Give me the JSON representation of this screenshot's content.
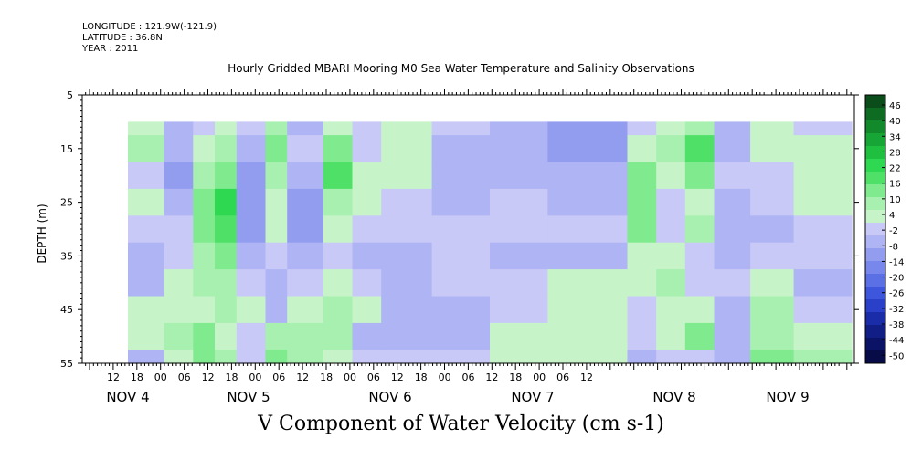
{
  "header": {
    "longitude": "LONGITUDE : 121.9W(-121.9)",
    "latitude": "LATITUDE : 36.8N",
    "year": "YEAR : 2011"
  },
  "chart_data": {
    "type": "heatmap",
    "title": "Hourly Gridded MBARI Mooring M0 Sea Water Temperature and Salinity Observations",
    "xlabel": "V Component of Water Velocity (cm s-1)",
    "ylabel": "DEPTH (m)",
    "ylim": [
      55,
      5
    ],
    "y_ticks": [
      "5",
      "15",
      "25",
      "35",
      "45",
      "55"
    ],
    "x_hour_ticks": [
      "12",
      "18",
      "00",
      "06",
      "12",
      "18",
      "00",
      "06",
      "12",
      "18",
      "00",
      "06",
      "12",
      "18",
      "00",
      "06",
      "12",
      "18",
      "00",
      "06",
      "12"
    ],
    "x_day_labels": [
      "NOV  4",
      "NOV  5",
      "NOV  6",
      "NOV  7",
      "NOV  8",
      "NOV  9"
    ],
    "colorbar_labels": [
      "46",
      "40",
      "34",
      "28",
      "22",
      "16",
      "10",
      "4",
      "-2",
      "-8",
      "-14",
      "-20",
      "-26",
      "-32",
      "-38",
      "-44",
      "-50"
    ],
    "colorbar_colors": [
      "#0a4d1a",
      "#0e6b22",
      "#12892b",
      "#17a535",
      "#1fc03f",
      "#2fd851",
      "#4fe068",
      "#7fea8e",
      "#a8f0b0",
      "#c6f4c8",
      "#c9c9f7",
      "#aeb4f4",
      "#939df0",
      "#7887ec",
      "#5c70e6",
      "#3e56dc",
      "#2a40c8",
      "#1b2ca8",
      "#111e86",
      "#0b1366",
      "#070c48"
    ],
    "depths": [
      10,
      15,
      20,
      25,
      30,
      35,
      40,
      45,
      50,
      55
    ],
    "segments": [
      {
        "t0": 0.0,
        "t1": 0.05,
        "v": [
          6,
          10,
          -2,
          4,
          2,
          -4,
          -4,
          4,
          6,
          -4
        ]
      },
      {
        "t0": 0.05,
        "t1": 0.09,
        "v": [
          -4,
          -6,
          -8,
          -4,
          -2,
          0,
          4,
          6,
          8,
          4
        ]
      },
      {
        "t0": 0.09,
        "t1": 0.12,
        "v": [
          2,
          6,
          10,
          14,
          16,
          10,
          8,
          6,
          12,
          14
        ]
      },
      {
        "t0": 0.12,
        "t1": 0.15,
        "v": [
          4,
          8,
          16,
          22,
          20,
          16,
          10,
          8,
          6,
          10
        ]
      },
      {
        "t0": 0.15,
        "t1": 0.19,
        "v": [
          -2,
          -6,
          -8,
          -10,
          -8,
          -4,
          2,
          4,
          2,
          -2
        ]
      },
      {
        "t0": 0.19,
        "t1": 0.22,
        "v": [
          10,
          14,
          8,
          4,
          6,
          2,
          -4,
          -6,
          8,
          12
        ]
      },
      {
        "t0": 0.22,
        "t1": 0.27,
        "v": [
          -4,
          -2,
          -6,
          -8,
          -10,
          -6,
          -2,
          6,
          10,
          8
        ]
      },
      {
        "t0": 0.27,
        "t1": 0.31,
        "v": [
          6,
          14,
          18,
          10,
          4,
          2,
          6,
          8,
          10,
          4
        ]
      },
      {
        "t0": 0.31,
        "t1": 0.35,
        "v": [
          -2,
          2,
          6,
          4,
          2,
          -4,
          2,
          4,
          -6,
          -2
        ]
      },
      {
        "t0": 0.35,
        "t1": 0.42,
        "v": [
          6,
          6,
          4,
          1,
          -2,
          -4,
          -4,
          -4,
          -4,
          2
        ]
      },
      {
        "t0": 0.42,
        "t1": 0.5,
        "v": [
          -2,
          -4,
          -4,
          -4,
          -2,
          -2,
          -2,
          -4,
          -4,
          2
        ]
      },
      {
        "t0": 0.5,
        "t1": 0.58,
        "v": [
          -4,
          -6,
          -4,
          -2,
          -2,
          -4,
          2,
          2,
          4,
          4
        ]
      },
      {
        "t0": 0.58,
        "t1": 0.69,
        "v": [
          -8,
          -8,
          -6,
          -4,
          -2,
          -4,
          4,
          4,
          4,
          4
        ]
      },
      {
        "t0": 0.69,
        "t1": 0.73,
        "v": [
          -2,
          6,
          12,
          16,
          12,
          6,
          4,
          2,
          -2,
          -4
        ]
      },
      {
        "t0": 0.73,
        "t1": 0.77,
        "v": [
          6,
          8,
          4,
          2,
          2,
          6,
          10,
          4,
          6,
          -2
        ]
      },
      {
        "t0": 0.77,
        "t1": 0.81,
        "v": [
          10,
          18,
          12,
          4,
          8,
          2,
          -2,
          6,
          12,
          2
        ]
      },
      {
        "t0": 0.81,
        "t1": 0.86,
        "v": [
          -4,
          -6,
          -2,
          -4,
          -6,
          -4,
          -2,
          -4,
          -6,
          -4
        ]
      },
      {
        "t0": 0.86,
        "t1": 0.92,
        "v": [
          4,
          6,
          2,
          -2,
          -4,
          -2,
          4,
          10,
          8,
          12
        ]
      },
      {
        "t0": 0.92,
        "t1": 1.0,
        "v": [
          2,
          4,
          6,
          4,
          2,
          -2,
          -4,
          2,
          6,
          8
        ]
      }
    ]
  }
}
